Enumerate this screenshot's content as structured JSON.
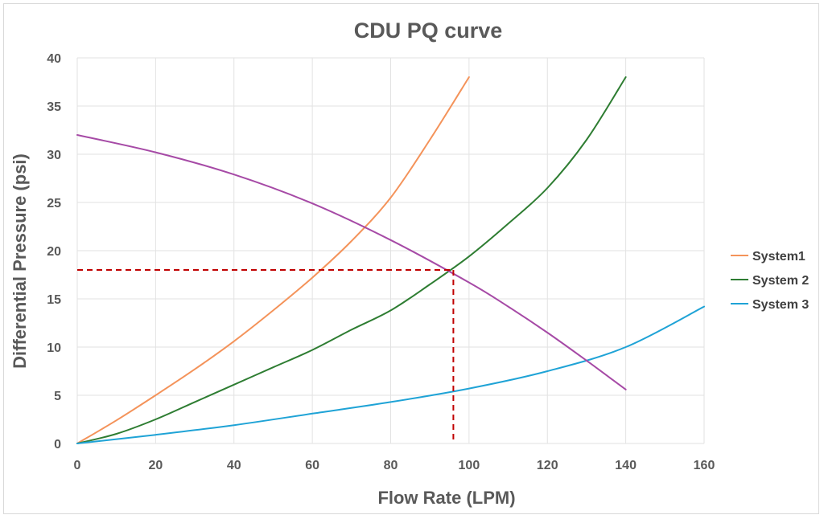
{
  "chart_data": {
    "type": "line",
    "title": "CDU PQ curve",
    "xlabel": "Flow Rate (LPM)",
    "ylabel": "Differential Pressure (psi)",
    "xlim": [
      0,
      160
    ],
    "ylim": [
      0,
      40
    ],
    "x_ticks": [
      0,
      20,
      40,
      60,
      80,
      100,
      120,
      140,
      160
    ],
    "y_ticks": [
      0,
      5,
      10,
      15,
      20,
      25,
      30,
      35,
      40
    ],
    "grid": true,
    "legend_position": "right",
    "series": [
      {
        "name": "System1",
        "color": "#f4935a",
        "points": [
          [
            0,
            0
          ],
          [
            10,
            2.4
          ],
          [
            20,
            5
          ],
          [
            30,
            7.7
          ],
          [
            40,
            10.6
          ],
          [
            50,
            13.8
          ],
          [
            60,
            17.2
          ],
          [
            70,
            21
          ],
          [
            80,
            25.5
          ],
          [
            90,
            31.5
          ],
          [
            100,
            38
          ]
        ]
      },
      {
        "name": "System 2",
        "color": "#2e7d32",
        "points": [
          [
            0,
            0
          ],
          [
            10,
            1
          ],
          [
            20,
            2.5
          ],
          [
            30,
            4.3
          ],
          [
            40,
            6.1
          ],
          [
            50,
            7.9
          ],
          [
            60,
            9.7
          ],
          [
            70,
            11.8
          ],
          [
            80,
            13.8
          ],
          [
            90,
            16.5
          ],
          [
            100,
            19.4
          ],
          [
            110,
            22.8
          ],
          [
            120,
            26.5
          ],
          [
            130,
            31.5
          ],
          [
            140,
            38
          ]
        ]
      },
      {
        "name": "System 3",
        "color": "#1fa3d6",
        "points": [
          [
            0,
            0
          ],
          [
            20,
            0.9
          ],
          [
            40,
            1.9
          ],
          [
            60,
            3.1
          ],
          [
            80,
            4.3
          ],
          [
            100,
            5.7
          ],
          [
            120,
            7.5
          ],
          [
            140,
            10
          ],
          [
            160,
            14.2
          ]
        ]
      },
      {
        "name": "",
        "color": "#a64aa6",
        "points": [
          [
            0,
            32
          ],
          [
            20,
            30.2
          ],
          [
            40,
            27.9
          ],
          [
            60,
            24.9
          ],
          [
            80,
            21.1
          ],
          [
            100,
            16.7
          ],
          [
            110,
            14.2
          ],
          [
            120,
            11.5
          ],
          [
            130,
            8.6
          ],
          [
            136,
            6.8
          ],
          [
            140,
            5.6
          ]
        ]
      }
    ],
    "operating_point": {
      "x": 96,
      "y": 18,
      "color": "#c00000"
    }
  }
}
